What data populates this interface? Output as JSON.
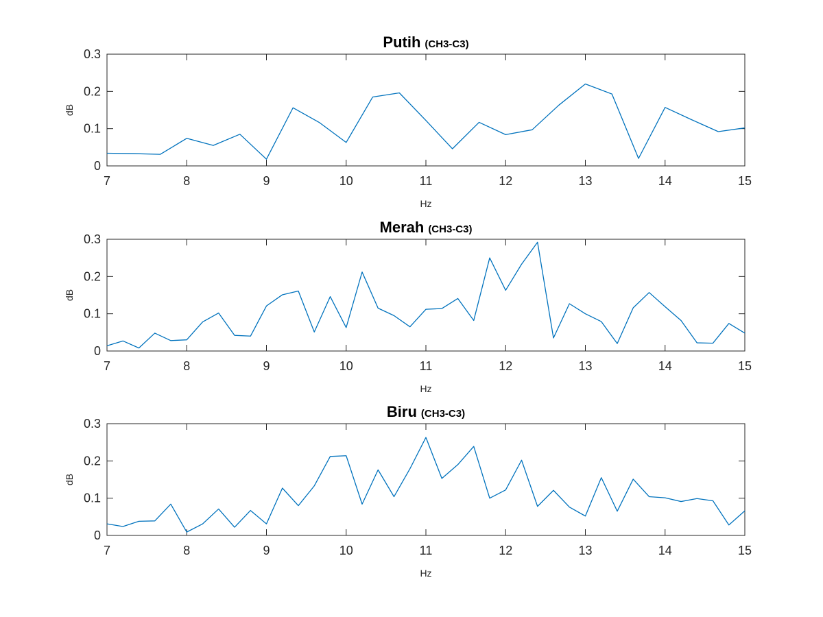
{
  "series_color": "#0072BD",
  "chart_data": [
    {
      "type": "line",
      "title": "Putih",
      "subtitle": "(CH3-C3)",
      "xlabel": "Hz",
      "ylabel": "dB",
      "xlim": [
        7,
        15
      ],
      "ylim": [
        0,
        0.3
      ],
      "xticks": [
        7,
        8,
        9,
        10,
        11,
        12,
        13,
        14,
        15
      ],
      "yticks": [
        0,
        0.1,
        0.2,
        0.3
      ],
      "xtick_labels": [
        "7",
        "8",
        "9",
        "10",
        "11",
        "12",
        "13",
        "14",
        "15"
      ],
      "ytick_labels": [
        "0",
        "0.1",
        "0.2",
        "0.3"
      ],
      "grid": false,
      "series": [
        {
          "x": [
            7,
            7.333,
            7.667,
            8,
            8.333,
            8.667,
            9,
            9.333,
            9.667,
            10,
            10.333,
            10.667,
            11,
            11.333,
            11.667,
            12,
            12.333,
            12.667,
            13,
            13.333,
            13.667,
            14,
            14.333,
            14.667,
            15
          ],
          "y": [
            0.034,
            0.033,
            0.031,
            0.074,
            0.055,
            0.085,
            0.018,
            0.156,
            0.116,
            0.063,
            0.185,
            0.196,
            0.122,
            0.046,
            0.117,
            0.084,
            0.097,
            0.163,
            0.22,
            0.193,
            0.02,
            0.157,
            0.124,
            0.092,
            0.102
          ]
        }
      ]
    },
    {
      "type": "line",
      "title": "Merah",
      "subtitle": "(CH3-C3)",
      "xlabel": "Hz",
      "ylabel": "dB",
      "xlim": [
        7,
        15
      ],
      "ylim": [
        0,
        0.3
      ],
      "xticks": [
        7,
        8,
        9,
        10,
        11,
        12,
        13,
        14,
        15
      ],
      "yticks": [
        0,
        0.1,
        0.2,
        0.3
      ],
      "xtick_labels": [
        "7",
        "8",
        "9",
        "10",
        "11",
        "12",
        "13",
        "14",
        "15"
      ],
      "ytick_labels": [
        "0",
        "0.1",
        "0.2",
        "0.3"
      ],
      "grid": false,
      "series": [
        {
          "x": [
            7,
            7.2,
            7.4,
            7.6,
            7.8,
            8,
            8.2,
            8.4,
            8.6,
            8.8,
            9,
            9.2,
            9.4,
            9.6,
            9.8,
            10,
            10.2,
            10.4,
            10.6,
            10.8,
            11,
            11.2,
            11.4,
            11.6,
            11.8,
            12,
            12.2,
            12.4,
            12.6,
            12.8,
            13,
            13.2,
            13.4,
            13.6,
            13.8,
            14,
            14.2,
            14.4,
            14.6,
            14.8,
            15
          ],
          "y": [
            0.014,
            0.027,
            0.008,
            0.048,
            0.028,
            0.03,
            0.078,
            0.102,
            0.042,
            0.04,
            0.121,
            0.151,
            0.161,
            0.051,
            0.146,
            0.063,
            0.212,
            0.115,
            0.095,
            0.065,
            0.112,
            0.114,
            0.141,
            0.082,
            0.25,
            0.163,
            0.233,
            0.292,
            0.035,
            0.127,
            0.1,
            0.079,
            0.02,
            0.116,
            0.157,
            0.119,
            0.082,
            0.022,
            0.021,
            0.074,
            0.048
          ]
        }
      ]
    },
    {
      "type": "line",
      "title": "Biru",
      "subtitle": "(CH3-C3)",
      "xlabel": "Hz",
      "ylabel": "dB",
      "xlim": [
        7,
        15
      ],
      "ylim": [
        0,
        0.3
      ],
      "xticks": [
        7,
        8,
        9,
        10,
        11,
        12,
        13,
        14,
        15
      ],
      "yticks": [
        0,
        0.1,
        0.2,
        0.3
      ],
      "xtick_labels": [
        "7",
        "8",
        "9",
        "10",
        "11",
        "12",
        "13",
        "14",
        "15"
      ],
      "ytick_labels": [
        "0",
        "0.1",
        "0.2",
        "0.3"
      ],
      "grid": false,
      "series": [
        {
          "x": [
            7,
            7.2,
            7.4,
            7.6,
            7.8,
            8,
            8.2,
            8.4,
            8.6,
            8.8,
            9,
            9.2,
            9.4,
            9.6,
            9.8,
            10,
            10.2,
            10.4,
            10.6,
            10.8,
            11,
            11.2,
            11.4,
            11.6,
            11.8,
            12,
            12.2,
            12.4,
            12.6,
            12.8,
            13,
            13.2,
            13.4,
            13.6,
            13.8,
            14,
            14.2,
            14.4,
            14.6,
            14.8,
            15
          ],
          "y": [
            0.031,
            0.024,
            0.038,
            0.039,
            0.084,
            0.009,
            0.031,
            0.071,
            0.022,
            0.067,
            0.031,
            0.127,
            0.08,
            0.133,
            0.212,
            0.214,
            0.084,
            0.176,
            0.104,
            0.179,
            0.263,
            0.153,
            0.19,
            0.239,
            0.1,
            0.122,
            0.202,
            0.078,
            0.121,
            0.076,
            0.052,
            0.155,
            0.065,
            0.151,
            0.104,
            0.101,
            0.091,
            0.099,
            0.093,
            0.028,
            0.066
          ]
        }
      ]
    }
  ]
}
